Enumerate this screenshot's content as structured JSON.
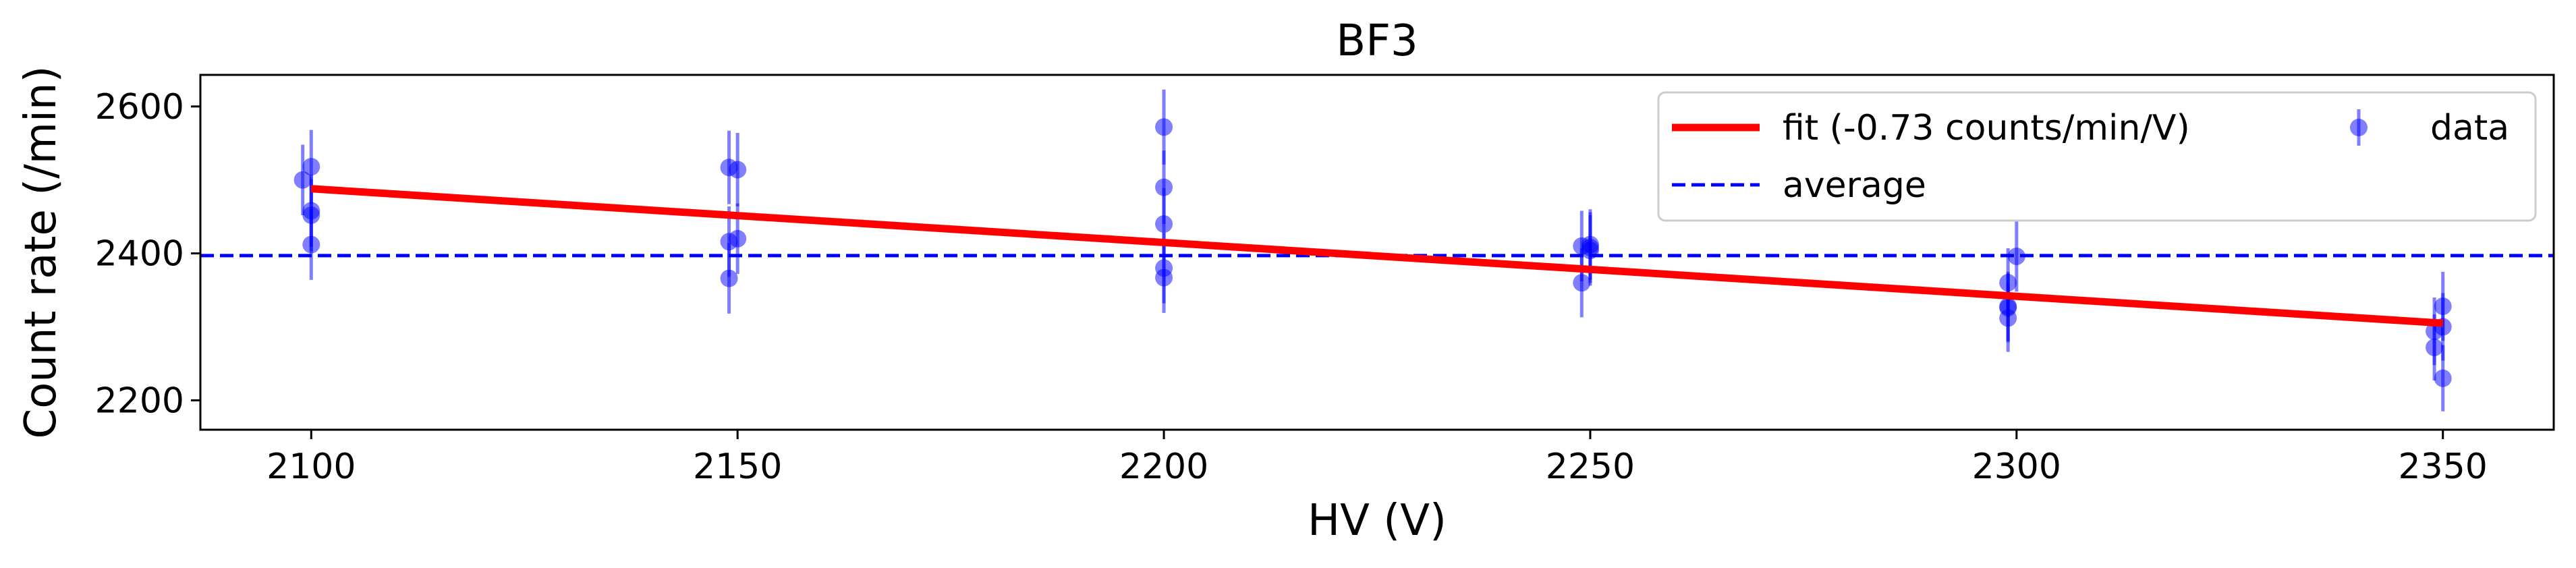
{
  "chart_data": {
    "type": "scatter",
    "title": "BF3",
    "xlabel": "HV (V)",
    "ylabel": "Count rate (/min)",
    "xlim": [
      2087,
      2363
    ],
    "ylim": [
      2160,
      2643
    ],
    "xticks": [
      2100,
      2150,
      2200,
      2250,
      2300,
      2350
    ],
    "yticks": [
      2200,
      2400,
      2600
    ],
    "grid": false,
    "legend_position": "top-right",
    "colors": {
      "fit": "#ff0000",
      "average": "#0000ff",
      "data": "#0000ff"
    },
    "series": [
      {
        "name": "data",
        "kind": "errorbar-scatter",
        "points": [
          {
            "x": 2099,
            "y": 2500,
            "err": 48
          },
          {
            "x": 2100,
            "y": 2518,
            "err": 50
          },
          {
            "x": 2100,
            "y": 2458,
            "err": 49
          },
          {
            "x": 2100,
            "y": 2452,
            "err": 49
          },
          {
            "x": 2100,
            "y": 2412,
            "err": 48
          },
          {
            "x": 2149,
            "y": 2517,
            "err": 50
          },
          {
            "x": 2150,
            "y": 2514,
            "err": 50
          },
          {
            "x": 2149,
            "y": 2416,
            "err": 48
          },
          {
            "x": 2150,
            "y": 2420,
            "err": 48
          },
          {
            "x": 2149,
            "y": 2366,
            "err": 48
          },
          {
            "x": 2200,
            "y": 2572,
            "err": 51
          },
          {
            "x": 2200,
            "y": 2490,
            "err": 50
          },
          {
            "x": 2200,
            "y": 2440,
            "err": 49
          },
          {
            "x": 2200,
            "y": 2380,
            "err": 48
          },
          {
            "x": 2200,
            "y": 2367,
            "err": 48
          },
          {
            "x": 2249,
            "y": 2410,
            "err": 48
          },
          {
            "x": 2250,
            "y": 2412,
            "err": 48
          },
          {
            "x": 2250,
            "y": 2408,
            "err": 48
          },
          {
            "x": 2250,
            "y": 2404,
            "err": 48
          },
          {
            "x": 2249,
            "y": 2360,
            "err": 47
          },
          {
            "x": 2299,
            "y": 2360,
            "err": 47
          },
          {
            "x": 2300,
            "y": 2396,
            "err": 48
          },
          {
            "x": 2299,
            "y": 2328,
            "err": 47
          },
          {
            "x": 2299,
            "y": 2326,
            "err": 47
          },
          {
            "x": 2299,
            "y": 2312,
            "err": 46
          },
          {
            "x": 2350,
            "y": 2328,
            "err": 47
          },
          {
            "x": 2350,
            "y": 2300,
            "err": 46
          },
          {
            "x": 2349,
            "y": 2294,
            "err": 46
          },
          {
            "x": 2349,
            "y": 2272,
            "err": 45
          },
          {
            "x": 2350,
            "y": 2230,
            "err": 45
          }
        ]
      },
      {
        "name": "fit (-0.73 counts/min/V)",
        "kind": "line",
        "x": [
          2100,
          2350
        ],
        "y": [
          2488,
          2305
        ]
      },
      {
        "name": "average",
        "kind": "hline",
        "y": 2397
      }
    ]
  }
}
